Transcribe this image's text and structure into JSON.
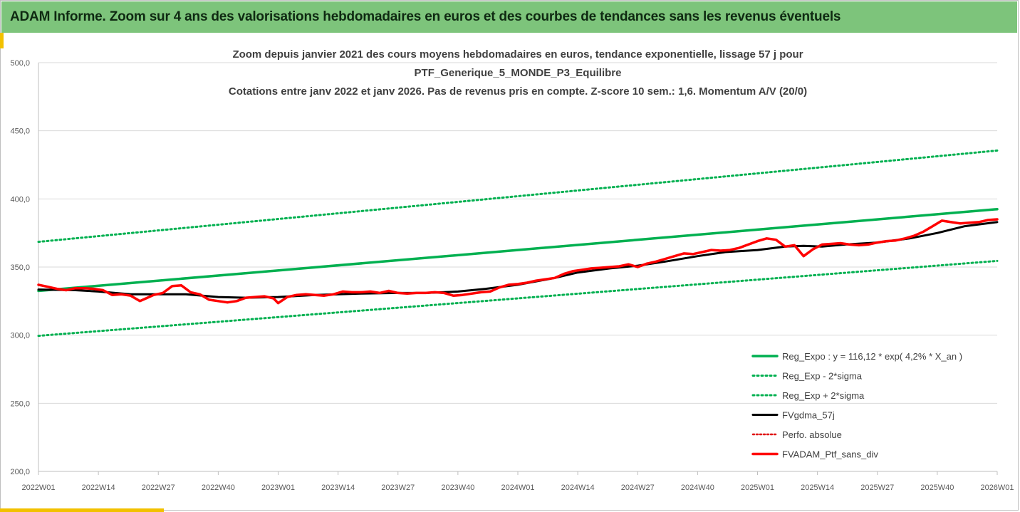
{
  "header": {
    "title": "ADAM Informe. Zoom sur 4 ans des valorisations hebdomadaires en euros et des courbes de tendances sans les revenus éventuels"
  },
  "chart_data": {
    "type": "line",
    "title_lines": [
      "Zoom depuis janvier 2021 des cours moyens hebdomadaires  en euros, tendance exponentielle, lissage 57 j pour",
      "PTF_Generique_5_MONDE_P3_Equilibre",
      "Cotations entre janv 2022 et janv 2026. Pas de revenus pris en compte. Z-score 10 sem.: 1,6. Momentum A/V (20/0)"
    ],
    "x_tick_labels": [
      "2022W01",
      "2022W14",
      "2022W27",
      "2022W40",
      "2023W01",
      "2023W14",
      "2023W27",
      "2023W40",
      "2024W01",
      "2024W14",
      "2024W27",
      "2024W40",
      "2025W01",
      "2025W14",
      "2025W27",
      "2025W40",
      "2026W01"
    ],
    "x_range": [
      0,
      208
    ],
    "y_ticks": [
      200,
      250,
      300,
      350,
      400,
      450,
      500
    ],
    "y_tick_labels": [
      "200,0",
      "250,0",
      "300,0",
      "350,0",
      "400,0",
      "450,0",
      "500,0"
    ],
    "ylim": [
      200,
      500
    ],
    "grid": "horizontal",
    "legend_position": "bottom-right",
    "colors": {
      "reg_expo": "#00b050",
      "reg_band": "#00b050",
      "fvgdma": "#000000",
      "perfo": "#e00000",
      "fvadam": "#ff0000",
      "grid": "#d9d9d9",
      "axis": "#bfbfbf"
    },
    "series": [
      {
        "name": "Reg_Expo : y = 116,12 * exp( 4,2% *  X_an )",
        "style": "solid-green",
        "x": [
          0,
          208
        ],
        "y": [
          332.5,
          392.5
        ]
      },
      {
        "name": "Reg_Exp - 2*sigma",
        "style": "dotted-green",
        "x": [
          0,
          208
        ],
        "y": [
          299.5,
          354.5
        ]
      },
      {
        "name": "Reg_Exp + 2*sigma",
        "style": "dotted-green",
        "x": [
          0,
          208
        ],
        "y": [
          368.5,
          435.5
        ]
      },
      {
        "name": "FVgdma_57j",
        "style": "solid-black",
        "x": [
          0,
          8,
          13,
          20,
          26,
          32,
          39,
          45,
          52,
          60,
          70,
          78,
          84,
          91,
          97,
          104,
          112,
          117,
          124,
          130,
          136,
          143,
          149,
          156,
          162,
          166,
          170,
          175,
          182,
          189,
          195,
          201,
          208
        ],
        "y": [
          333.5,
          333.0,
          332.0,
          330.0,
          330.0,
          330.0,
          328.0,
          327.5,
          328.0,
          329.5,
          330.5,
          331.0,
          331.0,
          332.0,
          334.0,
          337.0,
          342.0,
          346.0,
          349.0,
          351.0,
          354.0,
          358.0,
          361.0,
          362.5,
          365.0,
          365.5,
          365.0,
          366.5,
          368.0,
          371.0,
          375.0,
          380.0,
          383.0
        ]
      },
      {
        "name": "Perfo. absolue",
        "style": "dotted-red",
        "x": [],
        "y": []
      },
      {
        "name": "FVADAM_Ptf_sans_div",
        "style": "solid-red",
        "x": [
          0,
          2,
          4,
          6,
          8,
          10,
          12,
          14,
          16,
          18,
          20,
          22,
          23,
          25,
          27,
          29,
          31,
          33,
          35,
          37,
          39,
          41,
          43,
          45,
          47,
          49,
          51,
          52,
          54,
          56,
          58,
          60,
          62,
          64,
          66,
          68,
          70,
          72,
          74,
          76,
          78,
          80,
          82,
          84,
          86,
          88,
          90,
          92,
          94,
          96,
          98,
          100,
          102,
          104,
          106,
          108,
          110,
          112,
          114,
          116,
          118,
          120,
          122,
          124,
          126,
          128,
          130,
          132,
          134,
          136,
          138,
          140,
          142,
          144,
          146,
          148,
          150,
          152,
          154,
          156,
          158,
          160,
          162,
          164,
          166,
          168,
          170,
          172,
          174,
          176,
          178,
          180,
          182,
          184,
          186,
          188,
          190,
          192,
          194,
          196,
          198,
          200,
          202,
          204,
          206,
          208
        ],
        "y": [
          337.0,
          335.5,
          334.0,
          333.0,
          334.5,
          334.5,
          334.0,
          333.0,
          329.5,
          330.0,
          329.0,
          325.0,
          326.5,
          329.5,
          331.0,
          336.0,
          336.5,
          331.5,
          330.0,
          326.0,
          325.0,
          324.0,
          325.0,
          327.5,
          328.0,
          328.5,
          327.0,
          323.5,
          328.0,
          329.5,
          330.0,
          329.5,
          329.0,
          330.0,
          332.0,
          331.5,
          331.5,
          332.0,
          331.0,
          332.5,
          331.0,
          330.5,
          331.0,
          331.0,
          331.5,
          331.0,
          329.0,
          329.5,
          330.5,
          331.5,
          332.0,
          335.0,
          337.0,
          337.5,
          338.5,
          340.0,
          341.0,
          342.0,
          345.0,
          347.0,
          348.0,
          349.0,
          349.5,
          350.0,
          350.5,
          352.0,
          350.0,
          352.5,
          354.0,
          356.0,
          358.0,
          360.0,
          359.5,
          361.0,
          362.5,
          362.0,
          362.5,
          364.0,
          366.5,
          369.0,
          371.0,
          370.0,
          365.0,
          366.0,
          358.0,
          363.0,
          366.5,
          367.0,
          367.5,
          366.5,
          366.0,
          366.5,
          368.0,
          369.0,
          369.5,
          371.0,
          373.0,
          376.0,
          380.0,
          384.0,
          383.0,
          382.0,
          382.5,
          383.0,
          384.5,
          385.0
        ]
      }
    ]
  }
}
